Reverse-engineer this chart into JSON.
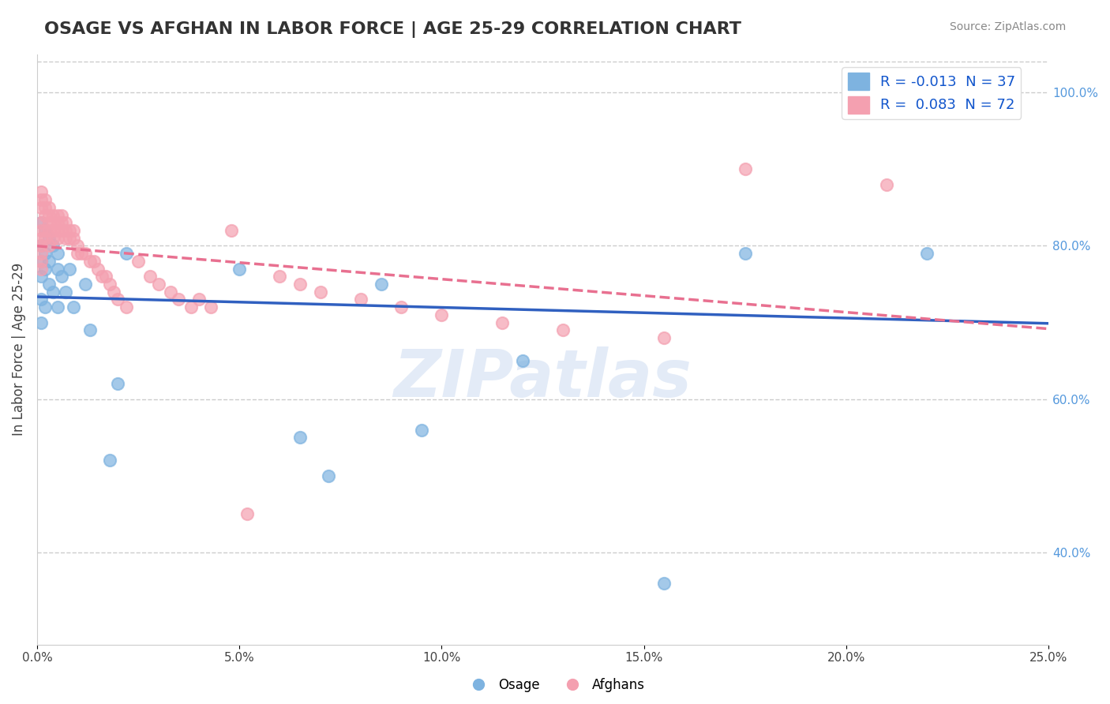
{
  "title": "OSAGE VS AFGHAN IN LABOR FORCE | AGE 25-29 CORRELATION CHART",
  "source_text": "Source: ZipAtlas.com",
  "xlabel": "",
  "ylabel": "In Labor Force | Age 25-29",
  "xlim": [
    0.0,
    0.25
  ],
  "ylim": [
    0.28,
    1.05
  ],
  "xtick_labels": [
    "0.0%",
    "5.0%",
    "10.0%",
    "15.0%",
    "20.0%",
    "25.0%"
  ],
  "xtick_vals": [
    0.0,
    0.05,
    0.1,
    0.15,
    0.2,
    0.25
  ],
  "ytick_labels_right": [
    "40.0%",
    "60.0%",
    "80.0%",
    "100.0%"
  ],
  "ytick_vals_right": [
    0.4,
    0.6,
    0.8,
    1.0
  ],
  "osage_color": "#7eb3e0",
  "afghan_color": "#f4a0b0",
  "osage_line_color": "#3060c0",
  "afghan_line_color": "#e87090",
  "legend_R_osage": "R = -0.013",
  "legend_N_osage": "N = 37",
  "legend_R_afghan": "R =  0.083",
  "legend_N_afghan": "N = 72",
  "watermark": "ZIPatlas",
  "watermark_color": "#c8d8f0",
  "background_color": "#ffffff",
  "osage_x": [
    0.001,
    0.001,
    0.001,
    0.001,
    0.001,
    0.001,
    0.002,
    0.002,
    0.002,
    0.002,
    0.003,
    0.003,
    0.003,
    0.004,
    0.004,
    0.005,
    0.005,
    0.005,
    0.006,
    0.007,
    0.008,
    0.009,
    0.012,
    0.013,
    0.018,
    0.02,
    0.022,
    0.05,
    0.065,
    0.072,
    0.085,
    0.095,
    0.12,
    0.155,
    0.175,
    0.22,
    0.235
  ],
  "osage_y": [
    0.83,
    0.8,
    0.78,
    0.76,
    0.73,
    0.7,
    0.82,
    0.79,
    0.77,
    0.72,
    0.81,
    0.78,
    0.75,
    0.8,
    0.74,
    0.79,
    0.77,
    0.72,
    0.76,
    0.74,
    0.77,
    0.72,
    0.75,
    0.69,
    0.52,
    0.62,
    0.79,
    0.77,
    0.55,
    0.5,
    0.75,
    0.56,
    0.65,
    0.36,
    0.79,
    0.79,
    1.0
  ],
  "afghan_x": [
    0.001,
    0.001,
    0.001,
    0.001,
    0.001,
    0.001,
    0.001,
    0.001,
    0.001,
    0.001,
    0.002,
    0.002,
    0.002,
    0.002,
    0.002,
    0.003,
    0.003,
    0.003,
    0.003,
    0.003,
    0.004,
    0.004,
    0.004,
    0.004,
    0.005,
    0.005,
    0.005,
    0.005,
    0.006,
    0.006,
    0.006,
    0.007,
    0.007,
    0.007,
    0.008,
    0.008,
    0.009,
    0.009,
    0.01,
    0.01,
    0.011,
    0.012,
    0.013,
    0.014,
    0.015,
    0.016,
    0.017,
    0.018,
    0.019,
    0.02,
    0.022,
    0.025,
    0.028,
    0.03,
    0.033,
    0.035,
    0.038,
    0.04,
    0.043,
    0.048,
    0.052,
    0.06,
    0.065,
    0.07,
    0.08,
    0.09,
    0.1,
    0.115,
    0.13,
    0.155,
    0.175,
    0.21
  ],
  "afghan_y": [
    0.87,
    0.86,
    0.85,
    0.83,
    0.82,
    0.81,
    0.8,
    0.79,
    0.78,
    0.77,
    0.86,
    0.85,
    0.84,
    0.82,
    0.81,
    0.85,
    0.84,
    0.83,
    0.82,
    0.8,
    0.84,
    0.83,
    0.82,
    0.81,
    0.84,
    0.83,
    0.82,
    0.81,
    0.84,
    0.83,
    0.82,
    0.83,
    0.82,
    0.81,
    0.82,
    0.81,
    0.82,
    0.81,
    0.8,
    0.79,
    0.79,
    0.79,
    0.78,
    0.78,
    0.77,
    0.76,
    0.76,
    0.75,
    0.74,
    0.73,
    0.72,
    0.78,
    0.76,
    0.75,
    0.74,
    0.73,
    0.72,
    0.73,
    0.72,
    0.82,
    0.45,
    0.76,
    0.75,
    0.74,
    0.73,
    0.72,
    0.71,
    0.7,
    0.69,
    0.68,
    0.9,
    0.88
  ]
}
